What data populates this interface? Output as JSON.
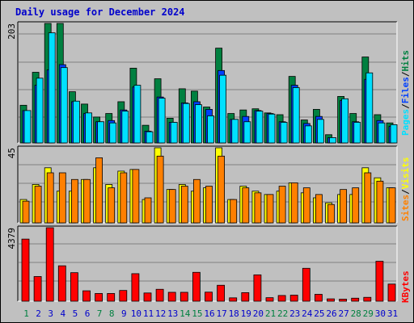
{
  "title": "Daily usage for December 2024",
  "colors": {
    "hits": "#008040",
    "files": "#0040ff",
    "pages": "#00e0ff",
    "visits": "#ffff00",
    "sites": "#ff8000",
    "kbytes": "#ff0000",
    "weekend_day": "#008040",
    "weekday_day": "#0000cc",
    "slash": "#000000"
  },
  "legend": {
    "hits": "Hits",
    "files": "Files",
    "pages": "Pages",
    "slash": "/",
    "visits": "Visits",
    "sites": "Sites",
    "kbytes": "KBytes"
  },
  "chart_data": [
    {
      "type": "bar",
      "title": "Daily usage for December 2024",
      "ymax_label": "203",
      "ylim": [
        0,
        203
      ],
      "x": [
        1,
        2,
        3,
        4,
        5,
        6,
        7,
        8,
        9,
        10,
        11,
        12,
        13,
        14,
        15,
        16,
        17,
        18,
        19,
        20,
        21,
        22,
        23,
        24,
        25,
        26,
        27,
        28,
        29,
        30,
        31
      ],
      "series": [
        {
          "name": "Hits",
          "values": [
            64,
            120,
            203,
            203,
            87,
            66,
            44,
            50,
            70,
            127,
            30,
            109,
            42,
            92,
            88,
            61,
            161,
            50,
            56,
            58,
            51,
            48,
            113,
            39,
            57,
            14,
            79,
            50,
            146,
            48,
            34
          ]
        },
        {
          "name": "Files",
          "values": [
            55,
            98,
            124,
            133,
            70,
            50,
            36,
            38,
            56,
            95,
            20,
            78,
            35,
            68,
            70,
            57,
            123,
            40,
            45,
            55,
            50,
            36,
            98,
            33,
            45,
            9,
            72,
            36,
            108,
            38,
            28
          ]
        },
        {
          "name": "Pages",
          "values": [
            55,
            110,
            187,
            128,
            71,
            51,
            36,
            34,
            54,
            98,
            19,
            76,
            35,
            67,
            65,
            46,
            115,
            40,
            36,
            54,
            49,
            35,
            94,
            29,
            40,
            9,
            75,
            35,
            119,
            34,
            31
          ]
        }
      ]
    },
    {
      "type": "bar",
      "ymax_label": "45",
      "ylim": [
        0,
        45
      ],
      "x": [
        1,
        2,
        3,
        4,
        5,
        6,
        7,
        8,
        9,
        10,
        11,
        12,
        13,
        14,
        15,
        16,
        17,
        18,
        19,
        20,
        21,
        22,
        23,
        24,
        25,
        26,
        27,
        28,
        29,
        30,
        31
      ],
      "series": [
        {
          "name": "Visits",
          "values": [
            14,
            23,
            33,
            19,
            19,
            26,
            33,
            23,
            31,
            32,
            14,
            45,
            20,
            23,
            19,
            21,
            45,
            14,
            22,
            19,
            17,
            19,
            24,
            18,
            15,
            12,
            17,
            17,
            33,
            27,
            21
          ]
        },
        {
          "name": "Sites",
          "values": [
            13,
            22,
            30,
            30,
            26,
            26,
            39,
            21,
            30,
            32,
            15,
            40,
            20,
            22,
            26,
            22,
            40,
            14,
            21,
            18,
            17,
            22,
            24,
            21,
            17,
            11,
            20,
            21,
            30,
            25,
            21
          ]
        }
      ]
    },
    {
      "type": "bar",
      "ymax_label": "4379",
      "ylim": [
        0,
        4379
      ],
      "x": [
        1,
        2,
        3,
        4,
        5,
        6,
        7,
        8,
        9,
        10,
        11,
        12,
        13,
        14,
        15,
        16,
        17,
        18,
        19,
        20,
        21,
        22,
        23,
        24,
        25,
        26,
        27,
        28,
        29,
        30,
        31
      ],
      "series": [
        {
          "name": "KBytes",
          "values": [
            3700,
            1470,
            4379,
            2110,
            1700,
            620,
            460,
            460,
            640,
            1640,
            490,
            710,
            530,
            530,
            1720,
            540,
            950,
            200,
            510,
            1570,
            210,
            340,
            360,
            1960,
            410,
            140,
            120,
            180,
            230,
            2380,
            1020
          ]
        }
      ]
    }
  ],
  "days": [
    "1",
    "2",
    "3",
    "4",
    "5",
    "6",
    "7",
    "8",
    "9",
    "10",
    "11",
    "12",
    "13",
    "14",
    "15",
    "16",
    "17",
    "18",
    "19",
    "20",
    "21",
    "22",
    "23",
    "24",
    "25",
    "26",
    "27",
    "28",
    "29",
    "30",
    "31"
  ],
  "weekend": [
    1,
    7,
    8,
    14,
    15,
    21,
    22,
    28,
    29
  ]
}
